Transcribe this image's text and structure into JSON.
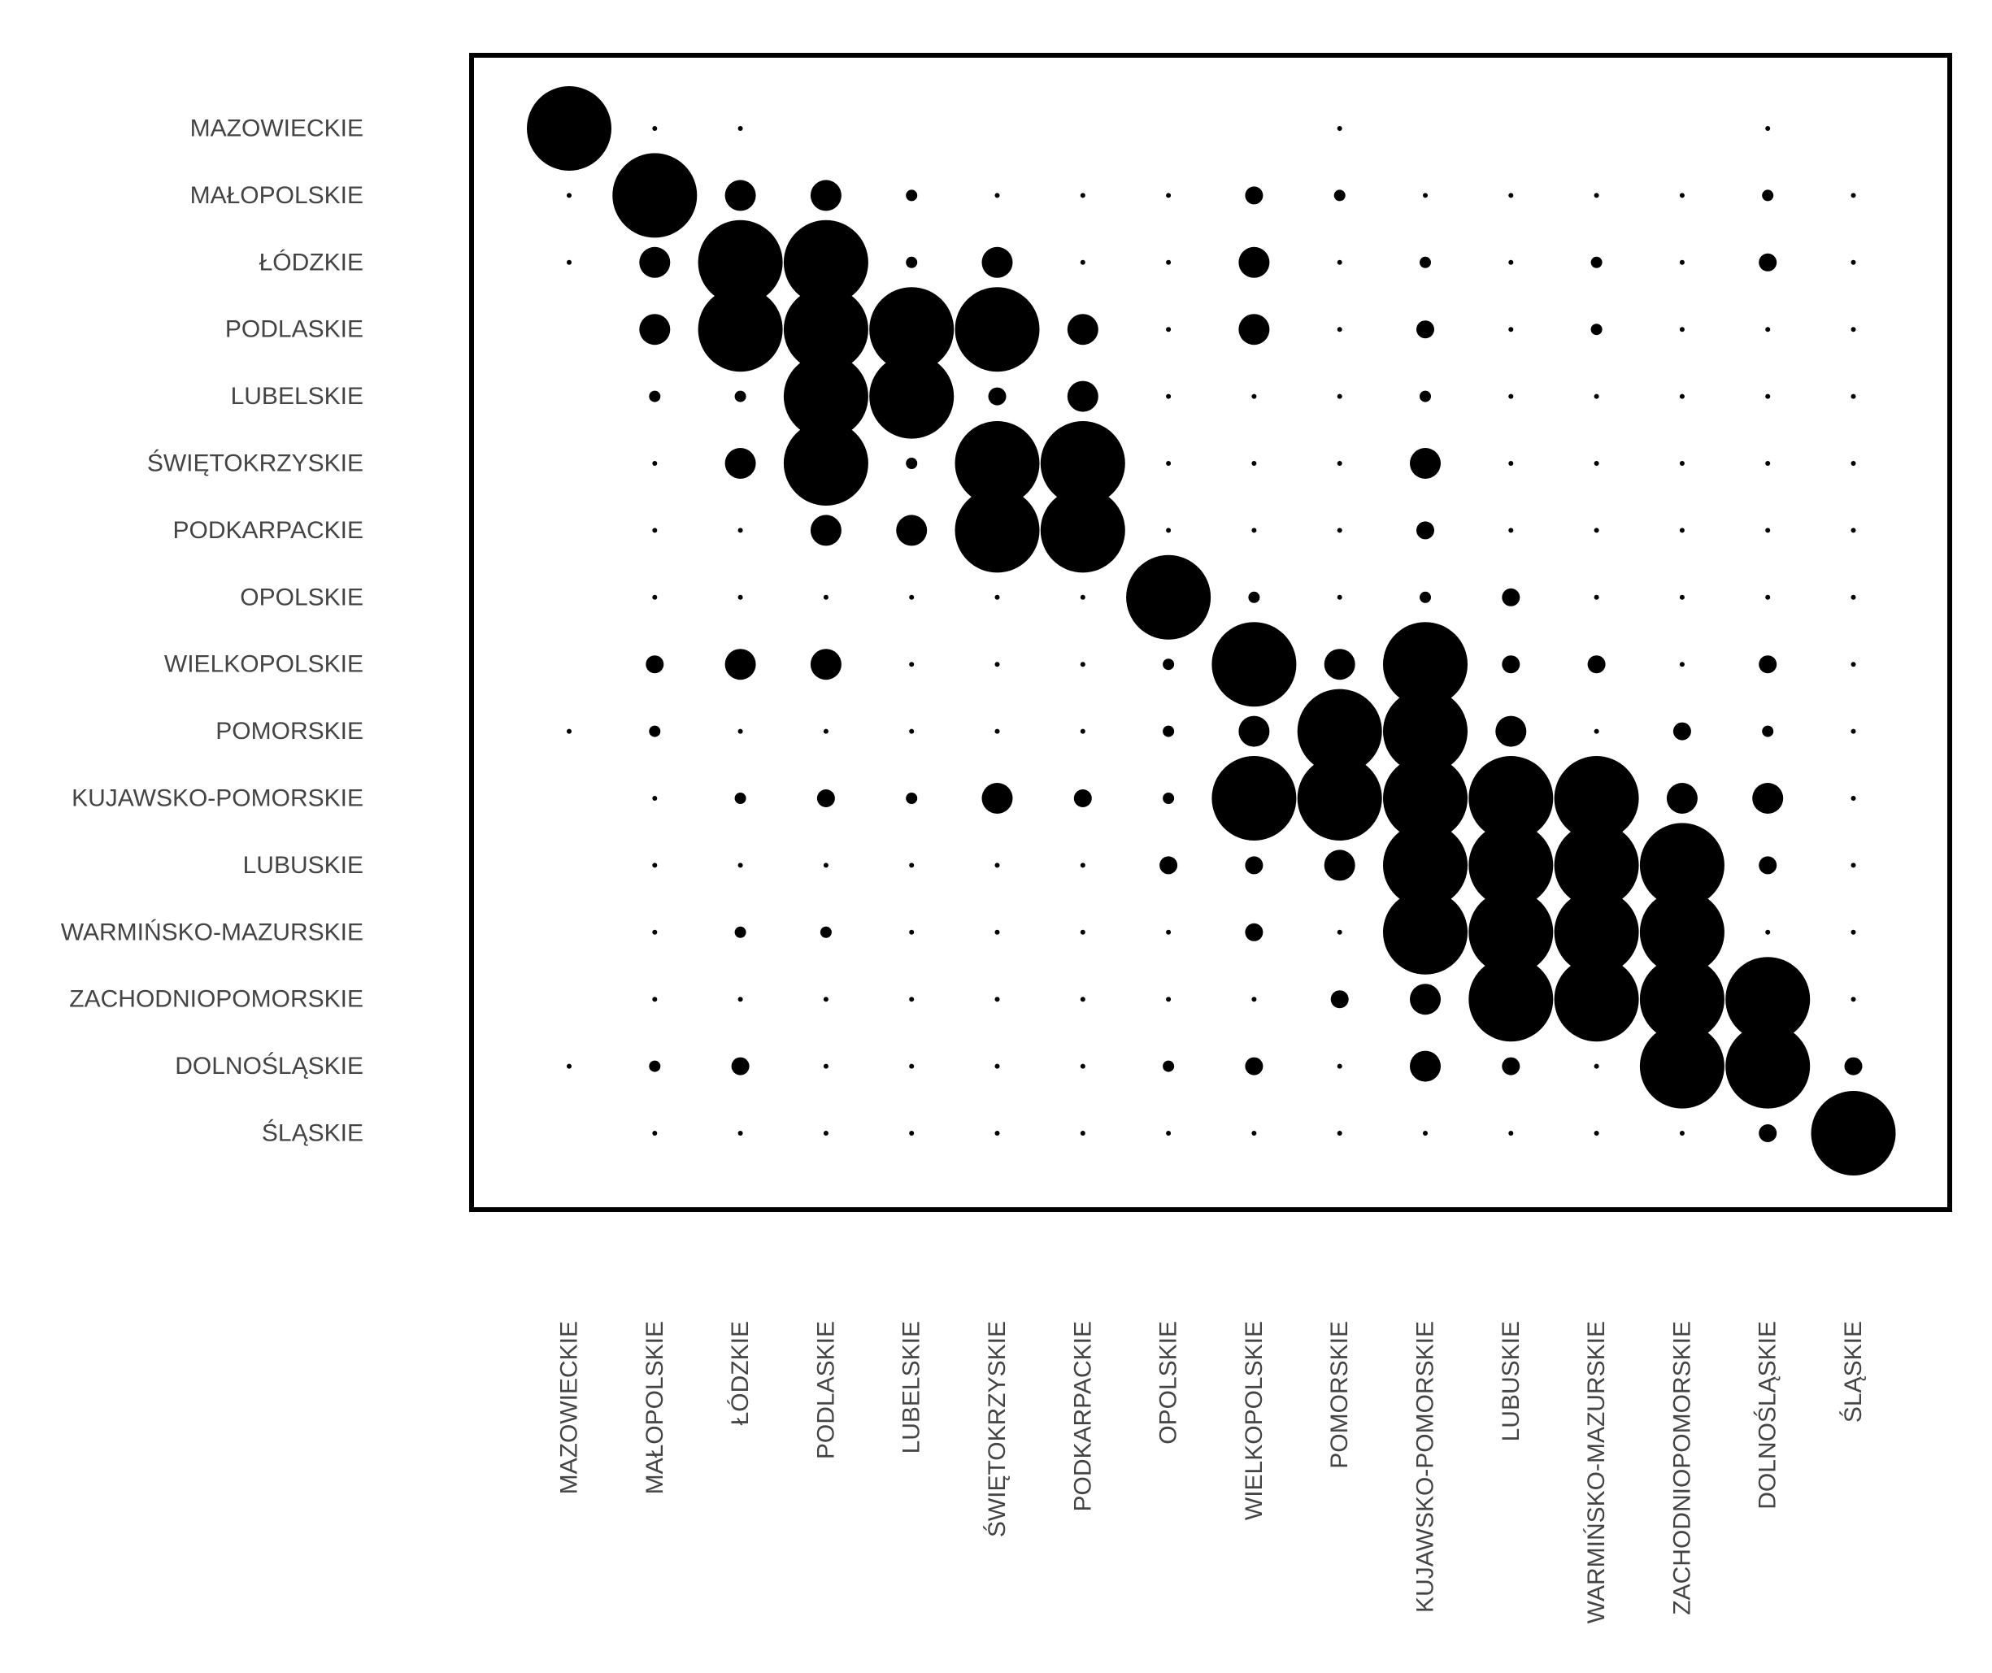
{
  "chart_data": {
    "type": "scatter",
    "title": "",
    "xlabel": "",
    "ylabel": "",
    "grid": false,
    "labels": [
      "MAZOWIECKIE",
      "MAŁOPOLSKIE",
      "ŁÓDZKIE",
      "PODLASKIE",
      "LUBELSKIE",
      "ŚWIĘTOKRZYSKIE",
      "PODKARPACKIE",
      "OPOLSKIE",
      "WIELKOPOLSKIE",
      "POMORSKIE",
      "KUJAWSKO-POMORSKIE",
      "LUBUSKIE",
      "WARMIŃSKO-MAZURSKIE",
      "ZACHODNIOPOMORSKIE",
      "DOLNOŚLĄSKIE",
      "ŚLĄSKIE"
    ],
    "values": [
      [
        10,
        1,
        1,
        0,
        0,
        0,
        0,
        0,
        0,
        1,
        0,
        0,
        0,
        0,
        1,
        0
      ],
      [
        1,
        10,
        5,
        5,
        2,
        1,
        1,
        1,
        3,
        2,
        1,
        1,
        1,
        1,
        2,
        1
      ],
      [
        1,
        5,
        10,
        10,
        2,
        5,
        1,
        1,
        5,
        1,
        2,
        1,
        2,
        1,
        3,
        1
      ],
      [
        0,
        5,
        10,
        10,
        10,
        10,
        5,
        1,
        5,
        1,
        3,
        1,
        2,
        1,
        1,
        1
      ],
      [
        0,
        2,
        2,
        10,
        10,
        3,
        5,
        1,
        1,
        1,
        2,
        1,
        1,
        1,
        1,
        1
      ],
      [
        0,
        1,
        5,
        10,
        2,
        10,
        10,
        1,
        1,
        1,
        5,
        1,
        1,
        1,
        1,
        1
      ],
      [
        0,
        1,
        1,
        5,
        5,
        10,
        10,
        1,
        1,
        1,
        3,
        1,
        1,
        1,
        1,
        1
      ],
      [
        0,
        1,
        1,
        1,
        1,
        1,
        1,
        10,
        2,
        1,
        2,
        3,
        1,
        1,
        1,
        1
      ],
      [
        0,
        3,
        5,
        5,
        1,
        1,
        1,
        2,
        10,
        5,
        10,
        3,
        3,
        1,
        3,
        1
      ],
      [
        1,
        2,
        1,
        1,
        1,
        1,
        1,
        2,
        5,
        10,
        10,
        5,
        1,
        3,
        2,
        1
      ],
      [
        0,
        1,
        2,
        3,
        2,
        5,
        3,
        2,
        10,
        10,
        10,
        10,
        10,
        5,
        5,
        1
      ],
      [
        0,
        1,
        1,
        1,
        1,
        1,
        1,
        3,
        3,
        5,
        10,
        10,
        10,
        10,
        3,
        1
      ],
      [
        0,
        1,
        2,
        2,
        1,
        1,
        1,
        1,
        3,
        1,
        10,
        10,
        10,
        10,
        1,
        1
      ],
      [
        0,
        1,
        1,
        1,
        1,
        1,
        1,
        1,
        1,
        3,
        5,
        10,
        10,
        10,
        10,
        1
      ],
      [
        1,
        2,
        3,
        1,
        1,
        1,
        1,
        2,
        3,
        1,
        5,
        3,
        1,
        10,
        10,
        3
      ],
      [
        0,
        1,
        1,
        1,
        1,
        1,
        1,
        1,
        1,
        1,
        1,
        1,
        1,
        1,
        3,
        10
      ]
    ]
  }
}
